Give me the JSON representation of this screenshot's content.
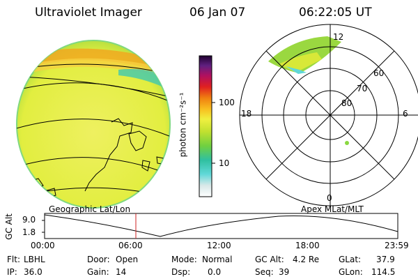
{
  "header": {
    "title": "Ultraviolet Imager",
    "date": "06 Jan 07",
    "time": "06:22:05 UT"
  },
  "colorbar": {
    "unit_label": "photon cm⁻²s⁻¹",
    "ticks": [
      "100",
      "10"
    ]
  },
  "polar_plot": {
    "mlt_labels": [
      "12",
      "18",
      "6",
      "0"
    ],
    "lat_labels": [
      "60",
      "70",
      "80"
    ]
  },
  "altitude_panel": {
    "left_title": "Geographic Lat/Lon",
    "right_title": "Apex MLat/MLT",
    "axis_label": "GC Alt",
    "y_ticks": [
      "9.0",
      "1.8"
    ],
    "x_ticks": [
      "00:00",
      "06:00",
      "12:00",
      "18:00",
      "23:59"
    ],
    "current_time_marker": "06:22"
  },
  "info": {
    "flt_label": "Flt:",
    "flt_value": "LBHL",
    "ip_label": "IP:",
    "ip_value": "36.0",
    "door_label": "Door:",
    "door_value": "Open",
    "gain_label": "Gain:",
    "gain_value": "14",
    "mode_label": "Mode:",
    "mode_value": "Normal",
    "dsp_label": "Dsp:",
    "dsp_value": "0.0",
    "gcalt_label": "GC Alt:",
    "gcalt_value": "4.2 Re",
    "seq_label": "Seq:",
    "seq_value": "39",
    "glat_label": "GLat:",
    "glat_value": "37.9",
    "glon_label": "GLon:",
    "glon_value": "114.5"
  },
  "colors": {
    "earth_fill": "#e6ef3c",
    "edge_green": "#8fd85a",
    "aurora_orange": "#f0a820",
    "marker_red": "#cc2222"
  }
}
